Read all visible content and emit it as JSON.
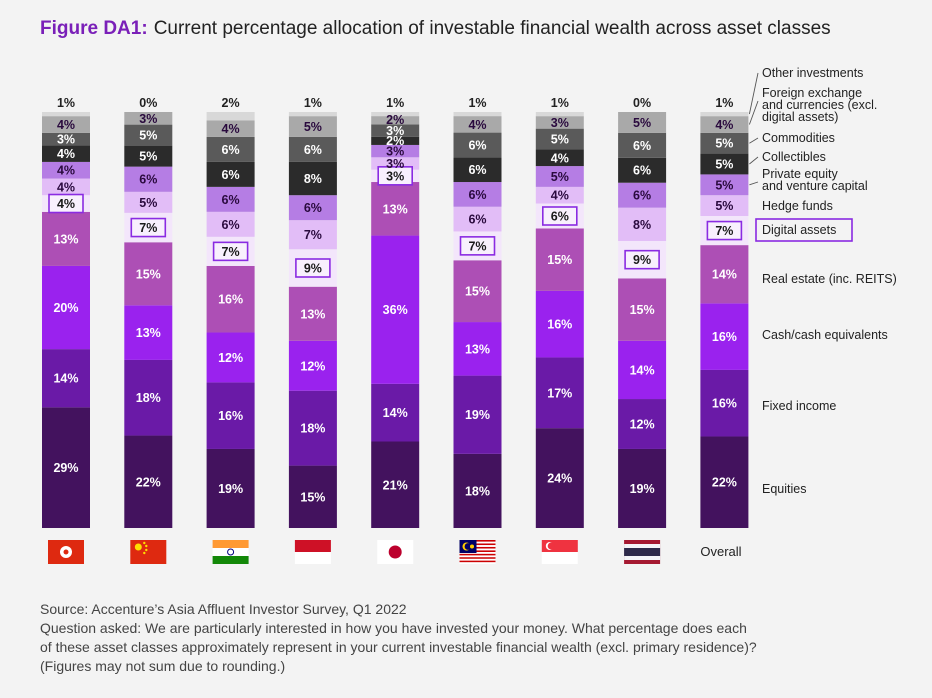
{
  "figure": {
    "number": "Figure DA1:",
    "title": "Current percentage allocation of investable financial wealth across asset classes"
  },
  "colors": {
    "Equities": "#43125e",
    "Fixed income": "#6a1aa7",
    "Cash/cash equivalents": "#9a22ee",
    "Real estate (inc. REITS)": "#ad4fb5",
    "Digital assets": "#f3e6fb",
    "Hedge funds": "#e2bdf7",
    "Private equity and venture capital": "#b57de4",
    "Collectibles": "#2b2b2b",
    "Commodities": "#5a5a5a",
    "Foreign exchange and currencies (excl. digital assets)": "#a9a9a9",
    "Other investments": "#d8d8d8",
    "highlight": "#8a2be2"
  },
  "chart_data": {
    "type": "bar",
    "stacked": true,
    "ylim": [
      0,
      100
    ],
    "grid": false,
    "legend_position": "right",
    "categories": [
      "Hong Kong",
      "China",
      "India",
      "Indonesia",
      "Japan",
      "Malaysia",
      "Singapore",
      "Thailand",
      "Overall"
    ],
    "category_icons": [
      "hong-kong-flag-icon",
      "china-flag-icon",
      "india-flag-icon",
      "indonesia-flag-icon",
      "japan-flag-icon",
      "malaysia-flag-icon",
      "singapore-flag-icon",
      "thailand-flag-icon",
      ""
    ],
    "overall_label": "Overall",
    "series": [
      {
        "name": "Equities",
        "values": [
          29,
          22,
          19,
          15,
          21,
          18,
          24,
          19,
          22
        ]
      },
      {
        "name": "Fixed income",
        "values": [
          14,
          18,
          16,
          18,
          14,
          19,
          17,
          12,
          16
        ]
      },
      {
        "name": "Cash/cash equivalents",
        "values": [
          20,
          13,
          12,
          12,
          36,
          13,
          16,
          14,
          16
        ]
      },
      {
        "name": "Real estate (inc. REITS)",
        "values": [
          13,
          15,
          16,
          13,
          13,
          15,
          15,
          15,
          14
        ]
      },
      {
        "name": "Digital assets",
        "values": [
          4,
          7,
          7,
          9,
          3,
          7,
          6,
          9,
          7
        ]
      },
      {
        "name": "Hedge funds",
        "values": [
          4,
          5,
          6,
          7,
          3,
          6,
          4,
          8,
          5
        ]
      },
      {
        "name": "Private equity and venture capital",
        "values": [
          4,
          6,
          6,
          6,
          3,
          6,
          5,
          6,
          5
        ]
      },
      {
        "name": "Collectibles",
        "values": [
          4,
          5,
          6,
          8,
          2,
          6,
          4,
          6,
          5
        ]
      },
      {
        "name": "Commodities",
        "values": [
          3,
          5,
          6,
          6,
          3,
          6,
          5,
          6,
          5
        ]
      },
      {
        "name": "Foreign exchange and currencies (excl. digital assets)",
        "values": [
          4,
          3,
          4,
          5,
          2,
          4,
          3,
          5,
          4
        ]
      },
      {
        "name": "Other investments",
        "values": [
          1,
          0,
          2,
          1,
          1,
          1,
          1,
          0,
          1
        ]
      }
    ],
    "value_suffix": "%",
    "highlight_series": "Digital assets",
    "legend": [
      "Other investments",
      "Foreign exchange and currencies (excl. digital assets)",
      "Commodities",
      "Collectibles",
      "Private equity and venture capital",
      "Hedge funds",
      "Digital assets",
      "Real estate (inc. REITS)",
      "Cash/cash equivalents",
      "Fixed income",
      "Equities"
    ],
    "legend_lines": [
      [
        "Other investments"
      ],
      [
        "Foreign exchange",
        "and currencies (excl.",
        "digital assets)"
      ],
      [
        "Commodities"
      ],
      [
        "Collectibles"
      ],
      [
        "Private equity",
        "and venture capital"
      ],
      [
        "Hedge funds"
      ],
      [
        "Digital assets"
      ],
      [
        "Real estate (inc. REITS)"
      ],
      [
        "Cash/cash equivalents"
      ],
      [
        "Fixed income"
      ],
      [
        "Equities"
      ]
    ]
  },
  "footnote": {
    "source": "Source: Accenture’s Asia Affluent Investor Survey, Q1 2022",
    "question_line1": "Question asked: We are particularly interested in how you have invested your money. What percentage does each",
    "question_line2": "of these asset classes approximately represent in your current investable financial wealth (excl. primary residence)?",
    "note": "(Figures may not sum due to rounding.)"
  }
}
